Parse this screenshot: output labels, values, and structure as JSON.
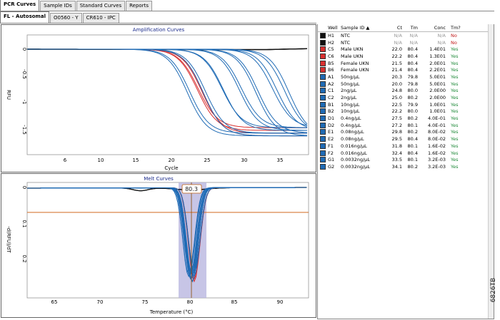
{
  "tabs_main": [
    "PCR Curves",
    "Sample IDs",
    "Standard Curves",
    "Reports"
  ],
  "tabs_sub": [
    "FL - Autosomal",
    "O0560 - Y",
    "CR610 - IPC"
  ],
  "amplification": {
    "title": "Amplification Curves",
    "xlabel": "Cycle",
    "ylabel": "RFU",
    "x_ticks": [
      "6",
      "10",
      "15",
      "20",
      "25",
      "30",
      "35"
    ],
    "y_ticks": [
      "0",
      "-0.5",
      "-1",
      "-1.5"
    ]
  },
  "melt": {
    "title": "Melt Curves",
    "xlabel": "Temperature (°C)",
    "ylabel": "-d(RFU)/dT",
    "x_ticks": [
      "65",
      "70",
      "75",
      "80",
      "85",
      "90"
    ],
    "y_ticks": [
      "0",
      "0.1",
      "0.2"
    ],
    "marker_value": "80.3"
  },
  "table": {
    "columns": [
      "Well",
      "Sample ID ▲",
      "Ct",
      "Tm",
      "Conc",
      "Tm?"
    ],
    "rows": [
      {
        "color": "#101010",
        "well": "H1",
        "id": "NTC",
        "ct": "N/A",
        "tm": "N/A",
        "conc": "N/A",
        "call": "No"
      },
      {
        "color": "#101010",
        "well": "H2",
        "id": "NTC",
        "ct": "N/A",
        "tm": "N/A",
        "conc": "N/A",
        "call": "No"
      },
      {
        "color": "#d93030",
        "well": "C5",
        "id": "Male UKN",
        "ct": "22.0",
        "tm": "80.4",
        "conc": "1.4E01",
        "call": "Yes"
      },
      {
        "color": "#d93030",
        "well": "C6",
        "id": "Male UKN",
        "ct": "22.2",
        "tm": "80.4",
        "conc": "1.3E01",
        "call": "Yes"
      },
      {
        "color": "#d93030",
        "well": "B5",
        "id": "Female UKN",
        "ct": "21.5",
        "tm": "80.4",
        "conc": "2.0E01",
        "call": "Yes"
      },
      {
        "color": "#d93030",
        "well": "B6",
        "id": "Female UKN",
        "ct": "21.4",
        "tm": "80.4",
        "conc": "2.2E01",
        "call": "Yes"
      },
      {
        "color": "#1f6bb5",
        "well": "A1",
        "id": "50ng/µL",
        "ct": "20.3",
        "tm": "79.8",
        "conc": "5.0E01",
        "call": "Yes"
      },
      {
        "color": "#1f6bb5",
        "well": "A2",
        "id": "50ng/µL",
        "ct": "20.0",
        "tm": "79.8",
        "conc": "5.0E01",
        "call": "Yes"
      },
      {
        "color": "#1f6bb5",
        "well": "C1",
        "id": "2ng/µL",
        "ct": "24.8",
        "tm": "80.0",
        "conc": "2.0E00",
        "call": "Yes"
      },
      {
        "color": "#1f6bb5",
        "well": "C2",
        "id": "2ng/µL",
        "ct": "25.0",
        "tm": "80.2",
        "conc": "2.0E00",
        "call": "Yes"
      },
      {
        "color": "#1f6bb5",
        "well": "B1",
        "id": "10ng/µL",
        "ct": "22.5",
        "tm": "79.9",
        "conc": "1.0E01",
        "call": "Yes"
      },
      {
        "color": "#1f6bb5",
        "well": "B2",
        "id": "10ng/µL",
        "ct": "22.2",
        "tm": "80.0",
        "conc": "1.0E01",
        "call": "Yes"
      },
      {
        "color": "#1f6bb5",
        "well": "D1",
        "id": "0.4ng/µL",
        "ct": "27.5",
        "tm": "80.2",
        "conc": "4.0E-01",
        "call": "Yes"
      },
      {
        "color": "#1f6bb5",
        "well": "D2",
        "id": "0.4ng/µL",
        "ct": "27.2",
        "tm": "80.1",
        "conc": "4.0E-01",
        "call": "Yes"
      },
      {
        "color": "#1f6bb5",
        "well": "E1",
        "id": "0.08ng/µL",
        "ct": "29.8",
        "tm": "80.2",
        "conc": "8.0E-02",
        "call": "Yes"
      },
      {
        "color": "#1f6bb5",
        "well": "E2",
        "id": "0.08ng/µL",
        "ct": "29.5",
        "tm": "80.4",
        "conc": "8.0E-02",
        "call": "Yes"
      },
      {
        "color": "#1f6bb5",
        "well": "F1",
        "id": "0.016ng/µL",
        "ct": "31.8",
        "tm": "80.1",
        "conc": "1.6E-02",
        "call": "Yes"
      },
      {
        "color": "#1f6bb5",
        "well": "F2",
        "id": "0.016ng/µL",
        "ct": "32.4",
        "tm": "80.4",
        "conc": "1.6E-02",
        "call": "Yes"
      },
      {
        "color": "#1f6bb5",
        "well": "G1",
        "id": "0.0032ng/µL",
        "ct": "33.5",
        "tm": "80.1",
        "conc": "3.2E-03",
        "call": "Yes"
      },
      {
        "color": "#1f6bb5",
        "well": "G2",
        "id": "0.0032ng/µL",
        "ct": "34.1",
        "tm": "80.2",
        "conc": "3.2E-03",
        "call": "Yes"
      }
    ]
  },
  "figure_code": "6826TB",
  "colors": {
    "ntc": "#101010",
    "unknown": "#d93030",
    "standard": "#1f6bb5",
    "threshold": "#d2691e",
    "melt_highlight": "#b9b6e0"
  }
}
